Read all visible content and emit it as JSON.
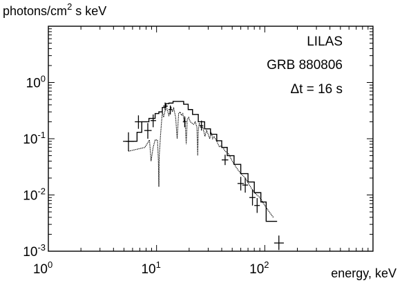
{
  "chart_data": {
    "type": "line",
    "ylabel": "photons/cm² s keV",
    "xlabel": "energy, keV",
    "x_scale": "log",
    "y_scale": "log",
    "xlim": [
      1,
      1000
    ],
    "ylim": [
      0.001,
      10
    ],
    "x_tick_labels": [
      {
        "value": 1,
        "base": "10",
        "exp": "0"
      },
      {
        "value": 10,
        "base": "10",
        "exp": "1"
      },
      {
        "value": 100,
        "base": "10",
        "exp": "2"
      }
    ],
    "y_tick_labels": [
      {
        "value": 0.001,
        "base": "10",
        "exp": "-3"
      },
      {
        "value": 0.01,
        "base": "10",
        "exp": "-2"
      },
      {
        "value": 0.1,
        "base": "10",
        "exp": "-1"
      },
      {
        "value": 1,
        "base": "10",
        "exp": "0"
      }
    ],
    "annotations": [
      "LILAS",
      "GRB 880806",
      "Δt = 16 s"
    ],
    "series": [
      {
        "style": "step",
        "x": [
          5.2,
          6.6,
          7.3,
          8.5,
          9.7,
          10.5,
          11.3,
          12.2,
          13.0,
          14.2,
          16.5,
          17.8,
          19.6,
          21.5,
          24.3,
          27.8,
          31.5,
          36.0,
          40.0,
          45.0,
          52.0,
          60.0,
          70.0,
          80.0,
          92.0,
          103.0,
          115.0,
          130.0
        ],
        "y": [
          0.09,
          0.13,
          0.2,
          0.23,
          0.28,
          0.3,
          0.36,
          0.42,
          0.43,
          0.46,
          0.46,
          0.41,
          0.33,
          0.27,
          0.2,
          0.15,
          0.12,
          0.092,
          0.07,
          0.05,
          0.035,
          0.024,
          0.017,
          0.011,
          0.0075,
          0.0034,
          0.0034,
          0.0034
        ]
      },
      {
        "style": "line",
        "x": [
          5.5,
          7.8,
          8.6,
          8.9,
          9.3,
          9.7,
          10.2,
          10.4,
          10.5,
          10.6,
          10.9,
          11.3,
          11.6,
          12.0,
          12.5,
          13.0,
          13.6,
          14.0,
          14.4,
          15.0,
          15.5,
          16.0,
          16.5,
          17.0,
          17.5,
          18.0,
          18.3,
          18.8,
          19.2,
          19.8,
          20.5,
          21.2,
          22.0,
          22.8,
          23.6,
          24.0,
          24.3,
          24.8,
          25.6,
          26.8,
          28.0,
          29.0,
          30.0,
          31.0,
          32.0,
          33.0,
          34.0,
          36.0,
          38.0,
          40.0,
          43.0,
          46.0,
          50.0,
          55.0,
          60.0,
          66.0,
          72.0,
          80.0,
          90.0,
          100.0,
          110.0,
          120.0
        ],
        "y": [
          0.06,
          0.07,
          0.095,
          0.04,
          0.07,
          0.095,
          0.095,
          0.04,
          0.014,
          0.05,
          0.12,
          0.3,
          0.24,
          0.32,
          0.34,
          0.26,
          0.36,
          0.3,
          0.35,
          0.24,
          0.1,
          0.28,
          0.3,
          0.26,
          0.28,
          0.2,
          0.24,
          0.08,
          0.22,
          0.24,
          0.2,
          0.19,
          0.18,
          0.2,
          0.16,
          0.05,
          0.14,
          0.19,
          0.16,
          0.16,
          0.11,
          0.14,
          0.12,
          0.1,
          0.13,
          0.1,
          0.11,
          0.09,
          0.072,
          0.075,
          0.06,
          0.055,
          0.04,
          0.03,
          0.024,
          0.02,
          0.015,
          0.011,
          0.009,
          0.0065,
          0.005,
          0.004
        ]
      },
      {
        "style": "crosses",
        "points": [
          {
            "x": 5.5,
            "y": 0.09,
            "xlo": 4.9,
            "xhi": 6.2,
            "ylo": 0.06,
            "yhi": 0.13
          },
          {
            "x": 6.8,
            "y": 0.2,
            "xlo": 6.3,
            "xhi": 7.4,
            "ylo": 0.15,
            "yhi": 0.26
          },
          {
            "x": 8.3,
            "y": 0.14,
            "xlo": 7.7,
            "xhi": 9.0,
            "ylo": 0.1,
            "yhi": 0.19
          },
          {
            "x": 9.3,
            "y": 0.21,
            "xlo": 8.8,
            "xhi": 9.9,
            "ylo": 0.16,
            "yhi": 0.27
          },
          {
            "x": 12.0,
            "y": 0.38,
            "xlo": 11.5,
            "xhi": 12.7,
            "ylo": 0.32,
            "yhi": 0.44
          },
          {
            "x": 13.4,
            "y": 0.33,
            "xlo": 12.9,
            "xhi": 14.0,
            "ylo": 0.27,
            "yhi": 0.39
          },
          {
            "x": 18.2,
            "y": 0.2,
            "xlo": 17.5,
            "xhi": 18.9,
            "ylo": 0.16,
            "yhi": 0.25
          },
          {
            "x": 26.0,
            "y": 0.17,
            "xlo": 25.0,
            "xhi": 27.0,
            "ylo": 0.14,
            "yhi": 0.21
          },
          {
            "x": 43.0,
            "y": 0.042,
            "xlo": 40.0,
            "xhi": 46.0,
            "ylo": 0.034,
            "yhi": 0.052
          },
          {
            "x": 60.0,
            "y": 0.016,
            "xlo": 56.0,
            "xhi": 64.0,
            "ylo": 0.012,
            "yhi": 0.021
          },
          {
            "x": 66.0,
            "y": 0.015,
            "xlo": 62.0,
            "xhi": 70.0,
            "ylo": 0.011,
            "yhi": 0.02
          },
          {
            "x": 77.0,
            "y": 0.009,
            "xlo": 72.0,
            "xhi": 82.0,
            "ylo": 0.0065,
            "yhi": 0.0125
          },
          {
            "x": 85.0,
            "y": 0.0065,
            "xlo": 80.0,
            "xhi": 90.0,
            "ylo": 0.0048,
            "yhi": 0.0088
          },
          {
            "x": 135.0,
            "y": 0.0014,
            "xlo": 122.0,
            "xhi": 150.0,
            "ylo": 0.00105,
            "yhi": 0.0019
          }
        ]
      }
    ]
  }
}
